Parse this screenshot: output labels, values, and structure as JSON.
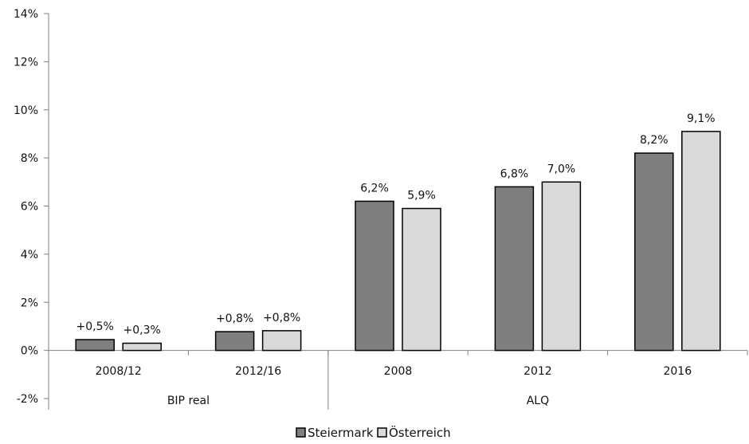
{
  "chart_data": {
    "type": "bar",
    "groups": [
      {
        "label": "BIP real",
        "categories": [
          "2008/12",
          "2012/16"
        ]
      },
      {
        "label": "ALQ",
        "categories": [
          "2008",
          "2012",
          "2016"
        ]
      }
    ],
    "categories": [
      "2008/12",
      "2012/16",
      "2008",
      "2012",
      "2016"
    ],
    "series": [
      {
        "name": "Steiermark",
        "color": "#7f7f7f",
        "values": [
          0.45,
          0.78,
          6.2,
          6.8,
          8.2
        ],
        "labels": [
          "+0,5%",
          "+0,8%",
          "6,2%",
          "6,8%",
          "8,2%"
        ]
      },
      {
        "name": "Österreich",
        "color": "#d9d9d9",
        "values": [
          0.3,
          0.82,
          5.9,
          7.0,
          9.1
        ],
        "labels": [
          "+0,3%",
          "+0,8%",
          "5,9%",
          "7,0%",
          "9,1%"
        ]
      }
    ],
    "yticks": [
      -2,
      0,
      2,
      4,
      6,
      8,
      10,
      12,
      14
    ],
    "ytick_labels": [
      "-2%",
      "0%",
      "2%",
      "4%",
      "6%",
      "8%",
      "10%",
      "12%",
      "14%"
    ],
    "ylim": [
      -2,
      14
    ],
    "grid": false,
    "legend": "bottom-center",
    "title": "",
    "xlabel": "",
    "ylabel": ""
  }
}
